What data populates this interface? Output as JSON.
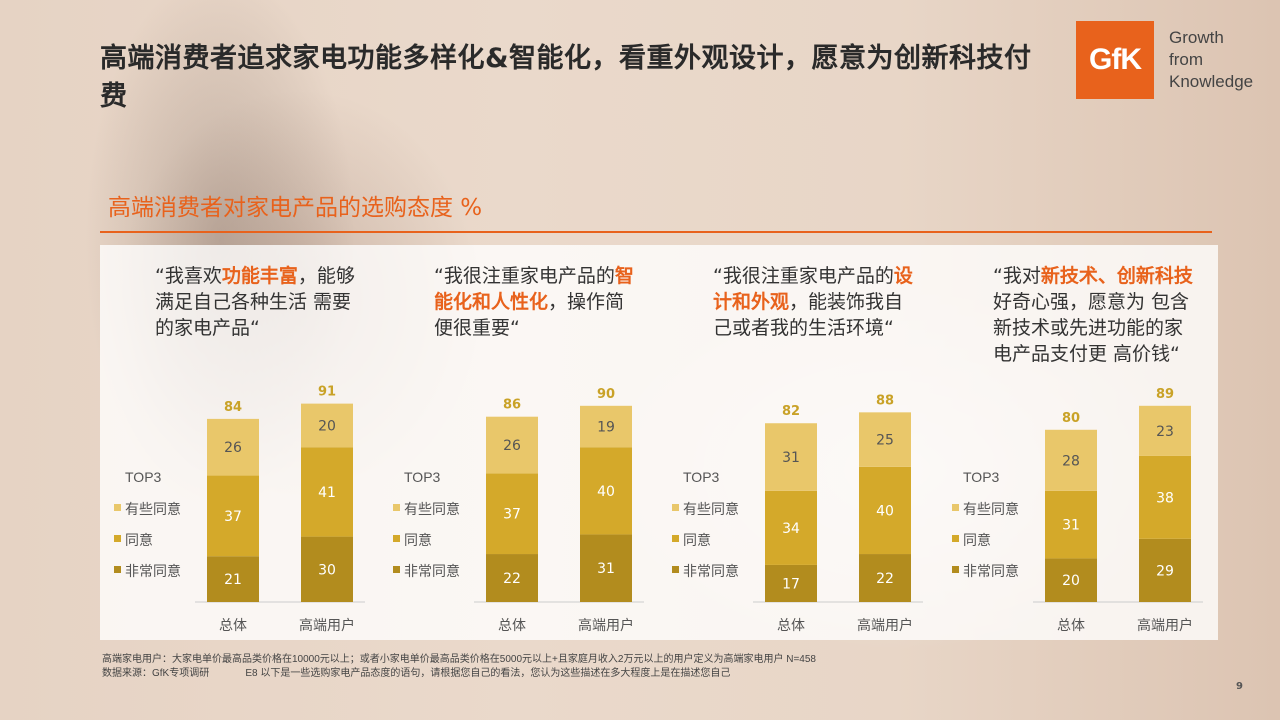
{
  "title": "高端消费者追求家电功能多样化&智能化，看重外观设计，愿意为创新科技付费",
  "logo": {
    "mark": "GfK",
    "tagline": "Growth\nfrom\nKnowledge"
  },
  "subtitle": "高端消费者对家电产品的选购态度 %",
  "colors": {
    "accent": "#e8621c",
    "some_agree": "#e9c76a",
    "agree": "#d4a92a",
    "strongly_agree": "#b28c1e",
    "total_label": "#c9a227"
  },
  "quotes": [
    {
      "parts": [
        {
          "t": "“我喜欢"
        },
        {
          "t": "功能丰富",
          "hl": true
        },
        {
          "t": "，能够满足自己各种生活 需要的家电产品“"
        }
      ]
    },
    {
      "parts": [
        {
          "t": "“我很注重家电产品的"
        },
        {
          "t": "智能化和人性化",
          "hl": true
        },
        {
          "t": "，操作简便很重要“"
        }
      ]
    },
    {
      "parts": [
        {
          "t": "“我很注重家电产品的"
        },
        {
          "t": "设计和外观",
          "hl": true
        },
        {
          "t": "，能装饰我自己或者我的生活环境“"
        }
      ]
    },
    {
      "parts": [
        {
          "t": "“我对"
        },
        {
          "t": "新技术、创新科技",
          "hl": true
        },
        {
          "t": "好奇心强，愿意为 包含新技术或先进功能的家电产品支付更 高价钱“"
        }
      ]
    }
  ],
  "chart_data": {
    "type": "bar",
    "stacked": true,
    "categories": [
      "总体",
      "高端用户"
    ],
    "legend_title": "TOP3",
    "legend": [
      "有些同意",
      "同意",
      "非常同意"
    ],
    "ylim": [
      0,
      100
    ],
    "groups": [
      {
        "series": [
          {
            "name": "有些同意",
            "values": [
              26,
              20
            ]
          },
          {
            "name": "同意",
            "values": [
              37,
              41
            ]
          },
          {
            "name": "非常同意",
            "values": [
              21,
              30
            ]
          }
        ],
        "totals": [
          84,
          91
        ]
      },
      {
        "series": [
          {
            "name": "有些同意",
            "values": [
              26,
              19
            ]
          },
          {
            "name": "同意",
            "values": [
              37,
              40
            ]
          },
          {
            "name": "非常同意",
            "values": [
              22,
              31
            ]
          }
        ],
        "totals": [
          86,
          90
        ]
      },
      {
        "series": [
          {
            "name": "有些同意",
            "values": [
              31,
              25
            ]
          },
          {
            "name": "同意",
            "values": [
              34,
              40
            ]
          },
          {
            "name": "非常同意",
            "values": [
              17,
              22
            ]
          }
        ],
        "totals": [
          82,
          88
        ]
      },
      {
        "series": [
          {
            "name": "有些同意",
            "values": [
              28,
              23
            ]
          },
          {
            "name": "同意",
            "values": [
              31,
              38
            ]
          },
          {
            "name": "非常同意",
            "values": [
              20,
              29
            ]
          }
        ],
        "totals": [
          80,
          89
        ]
      }
    ]
  },
  "footnote": {
    "line1": "高端家电用户：大家电单价最高品类价格在10000元以上；或者小家电单价最高品类价格在5000元以上+且家庭月收入2万元以上的用户定义为高端家电用户 N=458",
    "line2": "数据来源：GfK专项调研             E8 以下是一些选购家电产品态度的语句，请根据您自己的看法，您认为这些描述在多大程度上是在描述您自己"
  },
  "page_number": "9"
}
